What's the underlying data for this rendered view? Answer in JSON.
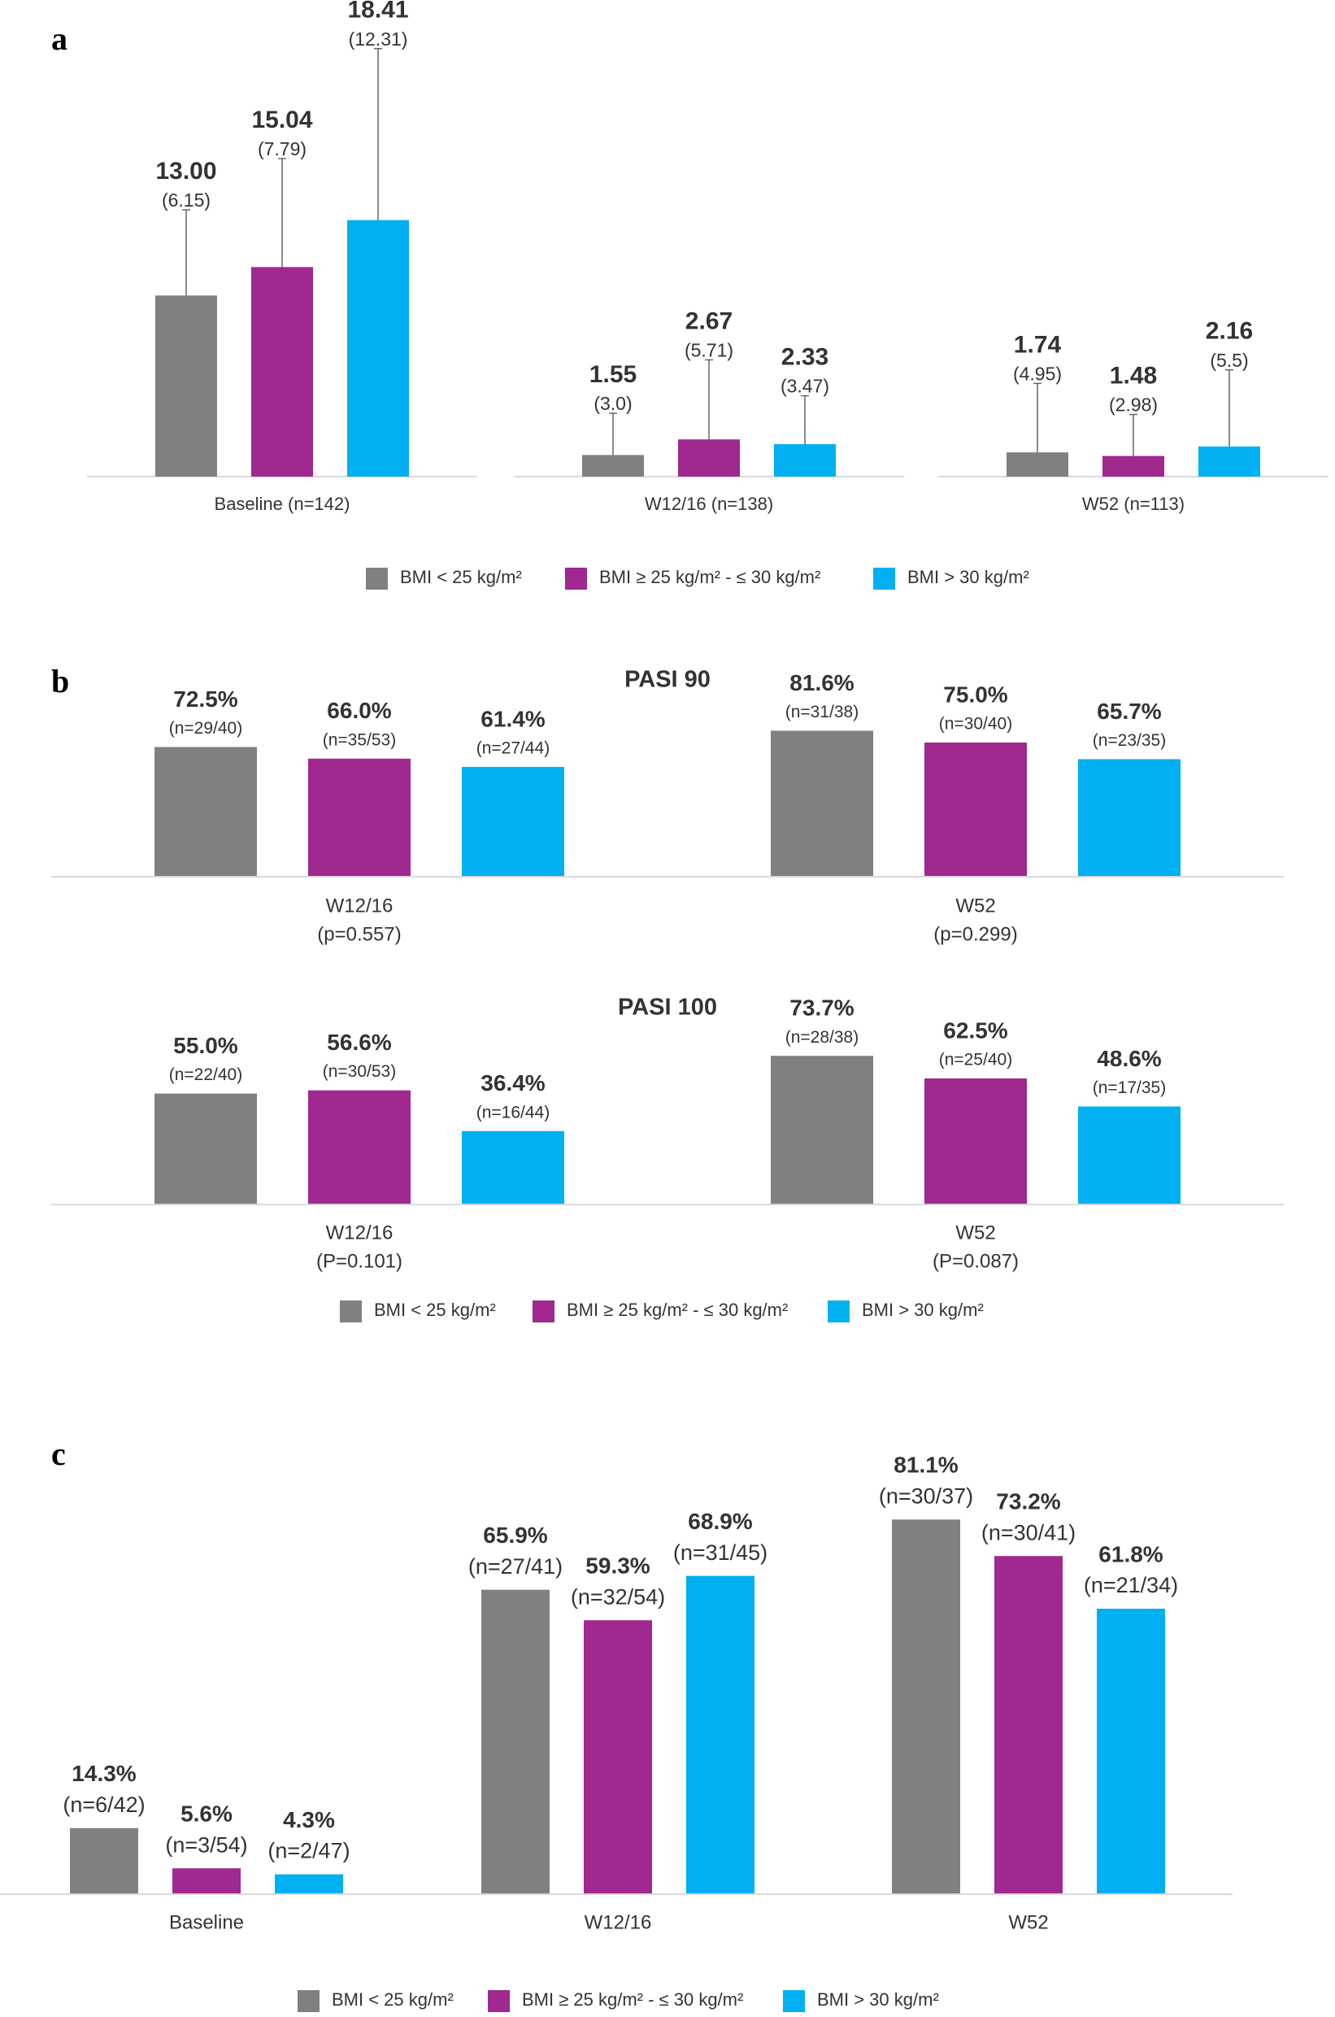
{
  "chart_data": [
    {
      "type": "bar",
      "panel": "a",
      "categories": [
        "Baseline (n=142)",
        "W12/16 (n=138)",
        "W52 (n=113)"
      ],
      "series": [
        {
          "name": "BMI < 25 kg/m²",
          "color": "#808080",
          "values": [
            13.0,
            1.55,
            1.74
          ],
          "value_labels": [
            "13.00",
            "1.55",
            "1.74"
          ],
          "errors": [
            6.15,
            3.0,
            4.95
          ],
          "error_labels": [
            "(6.15)",
            "(3.0)",
            "(4.95)"
          ]
        },
        {
          "name": "BMI ≥ 25 kg/m² - ≤ 30 kg/m²",
          "color": "#a0288f",
          "values": [
            15.04,
            2.67,
            1.48
          ],
          "value_labels": [
            "15.04",
            "2.67",
            "1.48"
          ],
          "errors": [
            7.79,
            5.71,
            2.98
          ],
          "error_labels": [
            "(7.79)",
            "(5.71)",
            "(2.98)"
          ]
        },
        {
          "name": "BMI > 30 kg/m²",
          "color": "#00b0f0",
          "values": [
            18.41,
            2.33,
            2.16
          ],
          "value_labels": [
            "18.41",
            "2.33",
            "2.16"
          ],
          "errors": [
            12.31,
            3.47,
            5.5
          ],
          "error_labels": [
            "(12.31)",
            "(3.47)",
            "(5.5)"
          ]
        }
      ]
    },
    {
      "type": "bar",
      "panel": "b",
      "title": "PASI 90",
      "categories": [
        "W12/16",
        "W52"
      ],
      "category_notes": [
        "(p=0.557)",
        "(p=0.299)"
      ],
      "series": [
        {
          "color": "#808080",
          "values": [
            72.5,
            81.6
          ],
          "value_labels": [
            "72.5%",
            "81.6%"
          ],
          "n_labels": [
            "(n=29/40)",
            "(n=31/38)"
          ]
        },
        {
          "color": "#a0288f",
          "values": [
            66.0,
            75.0
          ],
          "value_labels": [
            "66.0%",
            "75.0%"
          ],
          "n_labels": [
            "(n=35/53)",
            "(n=30/40)"
          ]
        },
        {
          "color": "#00b0f0",
          "values": [
            61.4,
            65.7
          ],
          "value_labels": [
            "61.4%",
            "65.7%"
          ],
          "n_labels": [
            "(n=27/44)",
            "(n=23/35)"
          ]
        }
      ]
    },
    {
      "type": "bar",
      "title": "PASI 100",
      "categories": [
        "W12/16",
        "W52"
      ],
      "category_notes": [
        "(P=0.101)",
        "(P=0.087)"
      ],
      "series": [
        {
          "name": "BMI < 25 kg/m²",
          "color": "#808080",
          "values": [
            55.0,
            73.7
          ],
          "value_labels": [
            "55.0%",
            "73.7%"
          ],
          "n_labels": [
            "(n=22/40)",
            "(n=28/38)"
          ]
        },
        {
          "name": "BMI ≥ 25 kg/m² - ≤ 30 kg/m²",
          "color": "#a0288f",
          "values": [
            56.6,
            62.5
          ],
          "value_labels": [
            "56.6%",
            "62.5%"
          ],
          "n_labels": [
            "(n=30/53)",
            "(n=25/40)"
          ]
        },
        {
          "name": "BMI > 30 kg/m²",
          "color": "#00b0f0",
          "values": [
            36.4,
            48.6
          ],
          "value_labels": [
            "36.4%",
            "48.6%"
          ],
          "n_labels": [
            "(n=16/44)",
            "(n=17/35)"
          ]
        }
      ]
    },
    {
      "type": "bar",
      "panel": "c",
      "categories": [
        "Baseline",
        "W12/16",
        "W52"
      ],
      "series": [
        {
          "name": "BMI < 25 kg/m²",
          "color": "#808080",
          "values": [
            14.3,
            65.9,
            81.1
          ],
          "value_labels": [
            "14.3%",
            "65.9%",
            "81.1%"
          ],
          "n_labels": [
            "(n=6/42)",
            "(n=27/41)",
            "(n=30/37)"
          ]
        },
        {
          "name": "BMI ≥ 25 kg/m² - ≤ 30 kg/m²",
          "color": "#a0288f",
          "values": [
            5.6,
            59.3,
            73.2
          ],
          "value_labels": [
            "5.6%",
            "59.3%",
            "73.2%"
          ],
          "n_labels": [
            "(n=3/54)",
            "(n=32/54)",
            "(n=30/41)"
          ]
        },
        {
          "name": "BMI > 30 kg/m²",
          "color": "#00b0f0",
          "values": [
            4.3,
            68.9,
            61.8
          ],
          "value_labels": [
            "4.3%",
            "68.9%",
            "61.8%"
          ],
          "n_labels": [
            "(n=2/47)",
            "(n=31/45)",
            "(n=21/34)"
          ]
        }
      ]
    }
  ]
}
